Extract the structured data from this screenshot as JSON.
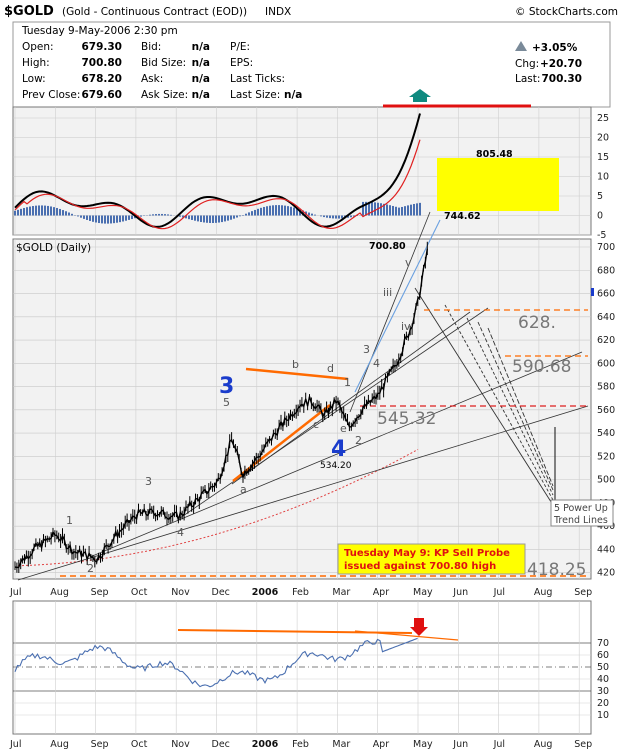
{
  "header": {
    "symbol": "$GOLD",
    "description": "(Gold - Continuous Contract (EOD))",
    "exchange": "INDX",
    "watermark": "© StockCharts.com",
    "datetime": "Tuesday  9-May-2006  2:30 pm",
    "quote_labels": [
      "Open:",
      "High:",
      "Low:",
      "Prev Close:"
    ],
    "quote_values": [
      "679.30",
      "700.80",
      "678.20",
      "679.60"
    ],
    "bid_labels": [
      "Bid:",
      "Bid Size:",
      "Ask:",
      "Ask Size:"
    ],
    "bid_values": [
      "n/a",
      "n/a",
      "n/a",
      "n/a"
    ],
    "misc_labels": [
      "P/E:",
      "EPS:",
      "Last Ticks:",
      "Last Size:"
    ],
    "last_size_value": "n/a",
    "pct_change": "+3.05%",
    "chg_label": "Chg:",
    "chg_value": "+20.70",
    "last_label": "Last:",
    "last_value": "700.30"
  },
  "colors": {
    "panel_bg": "#f2f2f2",
    "grid": "#c8c8c8",
    "price_line": "#000000",
    "macd_line": "#000000",
    "signal_line": "#e02020",
    "histogram": "#4a6fb0",
    "ma_dotted": "#e04040",
    "rsi_line": "#4a6fb0",
    "orange": "#ff6a00",
    "yellow_box": "#ffff00",
    "blue_wave": "#1a3ccc",
    "arrow_teal": "#108a80"
  },
  "chart_data": [
    {
      "type": "line",
      "panel": "indicator-top",
      "yticks": [
        "25",
        "20",
        "15",
        "10",
        "5",
        "0",
        "-5"
      ],
      "ylim": [
        -5,
        27
      ],
      "annotations": [
        "805.48",
        "744.62"
      ]
    },
    {
      "type": "line",
      "panel": "price",
      "title": "$GOLD (Daily)",
      "x_labels": [
        "Jul",
        "Aug",
        "Sep",
        "Oct",
        "Nov",
        "Dec",
        "2006",
        "Feb",
        "Mar",
        "Apr",
        "May",
        "Jun",
        "Jul",
        "Aug",
        "Sep"
      ],
      "yticks": [
        "700",
        "680",
        "660",
        "640",
        "620",
        "600",
        "580",
        "560",
        "540",
        "520",
        "500",
        "480",
        "460",
        "440",
        "420"
      ],
      "ylim": [
        412,
        705
      ],
      "series": [
        {
          "x": [
            "2005-07-01",
            "2005-07-15",
            "2005-08-01",
            "2005-08-15",
            "2005-09-01",
            "2005-09-15",
            "2005-10-01",
            "2005-10-15",
            "2005-11-01",
            "2005-11-15",
            "2005-12-01",
            "2005-12-12",
            "2005-12-20",
            "2006-01-01",
            "2006-01-15",
            "2006-02-01",
            "2006-02-10",
            "2006-02-20",
            "2006-03-01",
            "2006-03-10",
            "2006-03-20",
            "2006-04-01",
            "2006-04-15",
            "2006-04-25",
            "2006-05-01",
            "2006-05-09"
          ],
          "values": [
            425,
            440,
            453,
            438,
            432,
            452,
            470,
            472,
            468,
            482,
            498,
            535,
            505,
            520,
            542,
            565,
            568,
            555,
            568,
            545,
            560,
            572,
            600,
            628,
            650,
            700
          ]
        }
      ],
      "key_levels": {
        "hline_orange_top": 635,
        "hline_orange_mid": 590,
        "hline_red": 547,
        "hline_bottom": 418
      },
      "annotations": [
        "700.80",
        "628.",
        "590.68",
        "545.32",
        "418.25",
        "534.20",
        "3",
        "4",
        "5 Power Up Trend Lines",
        "Tuesday May 9: KP Sell Probe issued against 700.80 high"
      ],
      "wave_labels": [
        "1",
        "2",
        "3",
        "4",
        "5",
        "a",
        "b",
        "c",
        "d",
        "e",
        "1",
        "2",
        "3",
        "4",
        "iii",
        "iv",
        "v"
      ]
    },
    {
      "type": "line",
      "panel": "rsi",
      "yticks": [
        "70",
        "60",
        "50",
        "40",
        "30",
        "20",
        "10"
      ],
      "ylim": [
        2,
        80
      ],
      "reference_lines": [
        70,
        50,
        30
      ]
    }
  ]
}
